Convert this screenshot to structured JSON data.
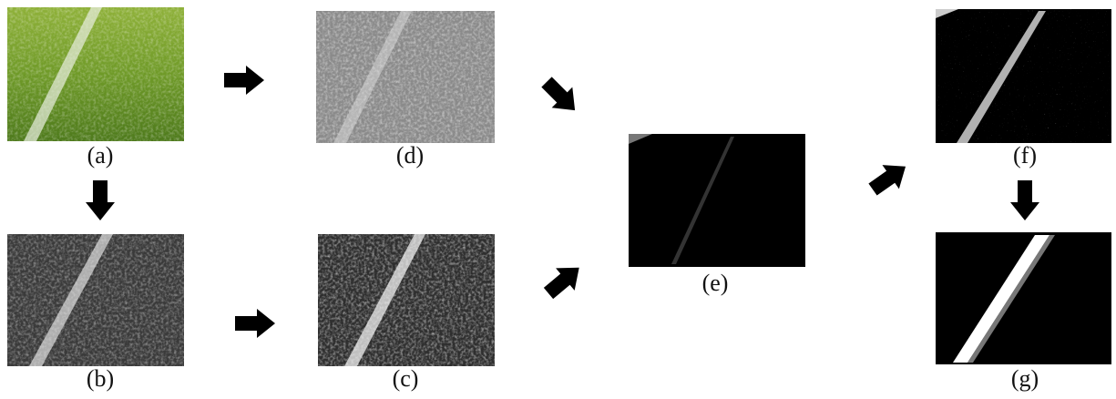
{
  "panels": [
    {
      "label": "(a)"
    },
    {
      "label": "(d)"
    },
    {
      "label": "(b)"
    },
    {
      "label": "(c)"
    },
    {
      "label": "(e)"
    },
    {
      "label": "(f)"
    },
    {
      "label": "(g)"
    }
  ]
}
